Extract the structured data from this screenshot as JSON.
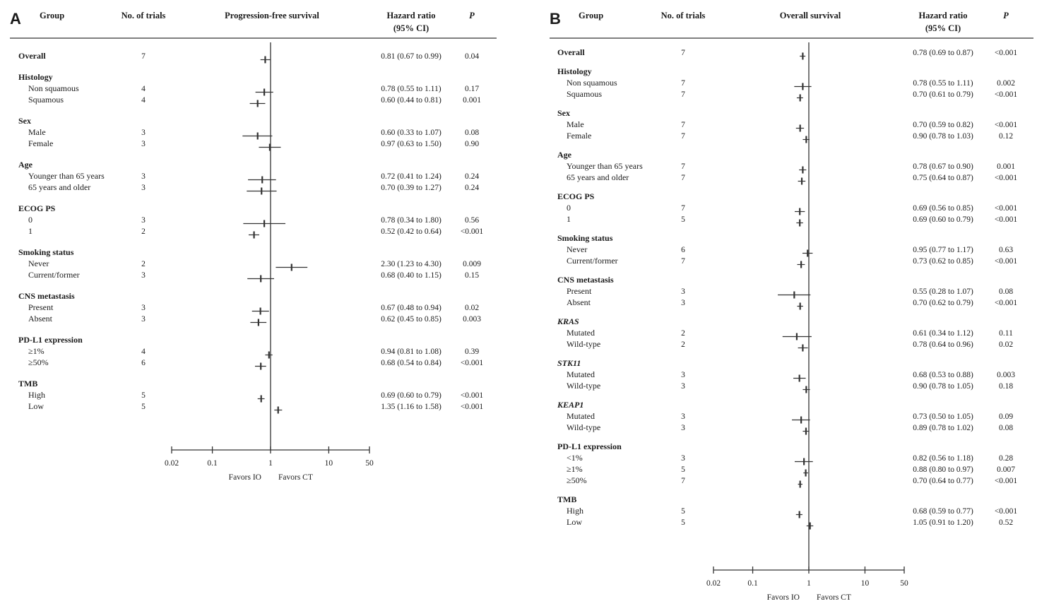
{
  "chart_data": [
    {
      "panel_label": "A",
      "type": "forest",
      "headers": {
        "group": "Group",
        "trials": "No. of trials",
        "plot": "Progression-free survival",
        "hr_line1": "Hazard ratio",
        "hr_line2": "(95% CI)",
        "p": "P"
      },
      "x_scale": "log",
      "xlim": [
        0.02,
        50
      ],
      "x_ticks": [
        "0.02",
        "0.1",
        "1",
        "10",
        "50"
      ],
      "reference_line": 1,
      "favors_left": "Favors IO",
      "favors_right": "Favors CT",
      "rows": [
        {
          "kind": "group",
          "label": "Overall",
          "trials": "7",
          "hr": 0.81,
          "lo": 0.67,
          "hi": 0.99,
          "ci_text": "0.81 (0.67 to 0.99)",
          "p": "0.04"
        },
        {
          "kind": "group",
          "label": "Histology"
        },
        {
          "kind": "sub",
          "label": "Non squamous",
          "trials": "4",
          "hr": 0.78,
          "lo": 0.55,
          "hi": 1.11,
          "ci_text": "0.78 (0.55 to 1.11)",
          "p": "0.17"
        },
        {
          "kind": "sub",
          "label": "Squamous",
          "trials": "4",
          "hr": 0.6,
          "lo": 0.44,
          "hi": 0.81,
          "ci_text": "0.60 (0.44 to 0.81)",
          "p": "0.001"
        },
        {
          "kind": "group",
          "label": "Sex"
        },
        {
          "kind": "sub",
          "label": "Male",
          "trials": "3",
          "hr": 0.6,
          "lo": 0.33,
          "hi": 1.07,
          "ci_text": "0.60 (0.33 to 1.07)",
          "p": "0.08"
        },
        {
          "kind": "sub",
          "label": "Female",
          "trials": "3",
          "hr": 0.97,
          "lo": 0.63,
          "hi": 1.5,
          "ci_text": "0.97 (0.63 to 1.50)",
          "p": "0.90"
        },
        {
          "kind": "group",
          "label": "Age"
        },
        {
          "kind": "sub",
          "label": "Younger than 65 years",
          "trials": "3",
          "hr": 0.72,
          "lo": 0.41,
          "hi": 1.24,
          "ci_text": "0.72 (0.41 to 1.24)",
          "p": "0.24"
        },
        {
          "kind": "sub",
          "label": "65 years and older",
          "trials": "3",
          "hr": 0.7,
          "lo": 0.39,
          "hi": 1.27,
          "ci_text": "0.70 (0.39 to 1.27)",
          "p": "0.24"
        },
        {
          "kind": "group",
          "label": "ECOG PS"
        },
        {
          "kind": "sub",
          "label": "0",
          "trials": "3",
          "hr": 0.78,
          "lo": 0.34,
          "hi": 1.8,
          "ci_text": "0.78 (0.34 to 1.80)",
          "p": "0.56"
        },
        {
          "kind": "sub",
          "label": "1",
          "trials": "2",
          "hr": 0.52,
          "lo": 0.42,
          "hi": 0.64,
          "ci_text": "0.52 (0.42 to 0.64)",
          "p": "<0.001"
        },
        {
          "kind": "group",
          "label": "Smoking status"
        },
        {
          "kind": "sub",
          "label": "Never",
          "trials": "2",
          "hr": 2.3,
          "lo": 1.23,
          "hi": 4.3,
          "ci_text": "2.30 (1.23 to 4.30)",
          "p": "0.009"
        },
        {
          "kind": "sub",
          "label": "Current/former",
          "trials": "3",
          "hr": 0.68,
          "lo": 0.4,
          "hi": 1.15,
          "ci_text": "0.68 (0.40 to 1.15)",
          "p": "0.15"
        },
        {
          "kind": "group",
          "label": "CNS metastasis"
        },
        {
          "kind": "sub",
          "label": "Present",
          "trials": "3",
          "hr": 0.67,
          "lo": 0.48,
          "hi": 0.94,
          "ci_text": "0.67 (0.48 to 0.94)",
          "p": "0.02"
        },
        {
          "kind": "sub",
          "label": "Absent",
          "trials": "3",
          "hr": 0.62,
          "lo": 0.45,
          "hi": 0.85,
          "ci_text": "0.62 (0.45 to 0.85)",
          "p": "0.003"
        },
        {
          "kind": "group",
          "label": "PD-L1 expression"
        },
        {
          "kind": "sub",
          "label": "≥1%",
          "trials": "4",
          "hr": 0.94,
          "lo": 0.81,
          "hi": 1.08,
          "ci_text": "0.94 (0.81 to 1.08)",
          "p": "0.39"
        },
        {
          "kind": "sub",
          "label": "≥50%",
          "trials": "6",
          "hr": 0.68,
          "lo": 0.54,
          "hi": 0.84,
          "ci_text": "0.68 (0.54 to 0.84)",
          "p": "<0.001"
        },
        {
          "kind": "group",
          "label": "TMB"
        },
        {
          "kind": "sub",
          "label": "High",
          "trials": "5",
          "hr": 0.69,
          "lo": 0.6,
          "hi": 0.79,
          "ci_text": "0.69 (0.60 to 0.79)",
          "p": "<0.001"
        },
        {
          "kind": "sub",
          "label": "Low",
          "trials": "5",
          "hr": 1.35,
          "lo": 1.16,
          "hi": 1.58,
          "ci_text": "1.35 (1.16 to 1.58)",
          "p": "<0.001"
        }
      ]
    },
    {
      "panel_label": "B",
      "type": "forest",
      "headers": {
        "group": "Group",
        "trials": "No. of trials",
        "plot": "Overall survival",
        "hr_line1": "Hazard ratio",
        "hr_line2": "(95% CI)",
        "p": "P"
      },
      "x_scale": "log",
      "xlim": [
        0.02,
        50
      ],
      "x_ticks": [
        "0.02",
        "0.1",
        "1",
        "10",
        "50"
      ],
      "reference_line": 1,
      "favors_left": "Favors IO",
      "favors_right": "Favors CT",
      "rows": [
        {
          "kind": "group",
          "label": "Overall",
          "trials": "7",
          "hr": 0.78,
          "lo": 0.69,
          "hi": 0.87,
          "ci_text": "0.78 (0.69 to 0.87)",
          "p": "<0.001"
        },
        {
          "kind": "group",
          "label": "Histology"
        },
        {
          "kind": "sub",
          "label": "Non squamous",
          "trials": "7",
          "hr": 0.78,
          "lo": 0.55,
          "hi": 1.11,
          "ci_text": "0.78 (0.55 to 1.11)",
          "p": "0.002"
        },
        {
          "kind": "sub",
          "label": "Squamous",
          "trials": "7",
          "hr": 0.7,
          "lo": 0.61,
          "hi": 0.79,
          "ci_text": "0.70 (0.61 to 0.79)",
          "p": "<0.001"
        },
        {
          "kind": "group",
          "label": "Sex"
        },
        {
          "kind": "sub",
          "label": "Male",
          "trials": "7",
          "hr": 0.7,
          "lo": 0.59,
          "hi": 0.82,
          "ci_text": "0.70 (0.59 to 0.82)",
          "p": "<0.001"
        },
        {
          "kind": "sub",
          "label": "Female",
          "trials": "7",
          "hr": 0.9,
          "lo": 0.78,
          "hi": 1.03,
          "ci_text": "0.90 (0.78 to 1.03)",
          "p": "0.12"
        },
        {
          "kind": "group",
          "label": "Age"
        },
        {
          "kind": "sub",
          "label": "Younger than 65 years",
          "trials": "7",
          "hr": 0.78,
          "lo": 0.67,
          "hi": 0.9,
          "ci_text": "0.78 (0.67 to 0.90)",
          "p": "0.001"
        },
        {
          "kind": "sub",
          "label": "65 years and older",
          "trials": "7",
          "hr": 0.75,
          "lo": 0.64,
          "hi": 0.87,
          "ci_text": "0.75 (0.64 to 0.87)",
          "p": "<0.001"
        },
        {
          "kind": "group",
          "label": "ECOG PS"
        },
        {
          "kind": "sub",
          "label": "0",
          "trials": "7",
          "hr": 0.69,
          "lo": 0.56,
          "hi": 0.85,
          "ci_text": "0.69 (0.56 to 0.85)",
          "p": "<0.001"
        },
        {
          "kind": "sub",
          "label": "1",
          "trials": "5",
          "hr": 0.69,
          "lo": 0.6,
          "hi": 0.79,
          "ci_text": "0.69 (0.60 to 0.79)",
          "p": "<0.001"
        },
        {
          "kind": "group",
          "label": "Smoking status"
        },
        {
          "kind": "sub",
          "label": "Never",
          "trials": "6",
          "hr": 0.95,
          "lo": 0.77,
          "hi": 1.17,
          "ci_text": "0.95 (0.77 to 1.17)",
          "p": "0.63"
        },
        {
          "kind": "sub",
          "label": "Current/former",
          "trials": "7",
          "hr": 0.73,
          "lo": 0.62,
          "hi": 0.85,
          "ci_text": "0.73 (0.62 to 0.85)",
          "p": "<0.001"
        },
        {
          "kind": "group",
          "label": "CNS metastasis"
        },
        {
          "kind": "sub",
          "label": "Present",
          "trials": "3",
          "hr": 0.55,
          "lo": 0.28,
          "hi": 1.07,
          "ci_text": "0.55 (0.28 to 1.07)",
          "p": "0.08"
        },
        {
          "kind": "sub",
          "label": "Absent",
          "trials": "3",
          "hr": 0.7,
          "lo": 0.62,
          "hi": 0.79,
          "ci_text": "0.70 (0.62 to 0.79)",
          "p": "<0.001"
        },
        {
          "kind": "group",
          "label": "KRAS",
          "italic": true
        },
        {
          "kind": "sub",
          "label": "Mutated",
          "trials": "2",
          "hr": 0.61,
          "lo": 0.34,
          "hi": 1.12,
          "ci_text": "0.61 (0.34 to 1.12)",
          "p": "0.11"
        },
        {
          "kind": "sub",
          "label": "Wild-type",
          "trials": "2",
          "hr": 0.78,
          "lo": 0.64,
          "hi": 0.96,
          "ci_text": "0.78 (0.64 to 0.96)",
          "p": "0.02"
        },
        {
          "kind": "group",
          "label": "STK11",
          "italic": true
        },
        {
          "kind": "sub",
          "label": "Mutated",
          "trials": "3",
          "hr": 0.68,
          "lo": 0.53,
          "hi": 0.88,
          "ci_text": "0.68 (0.53 to 0.88)",
          "p": "0.003"
        },
        {
          "kind": "sub",
          "label": "Wild-type",
          "trials": "3",
          "hr": 0.9,
          "lo": 0.78,
          "hi": 1.05,
          "ci_text": "0.90 (0.78 to 1.05)",
          "p": "0.18"
        },
        {
          "kind": "group",
          "label": "KEAP1",
          "italic": true
        },
        {
          "kind": "sub",
          "label": "Mutated",
          "trials": "3",
          "hr": 0.73,
          "lo": 0.5,
          "hi": 1.05,
          "ci_text": "0.73 (0.50 to 1.05)",
          "p": "0.09"
        },
        {
          "kind": "sub",
          "label": "Wild-type",
          "trials": "3",
          "hr": 0.89,
          "lo": 0.78,
          "hi": 1.02,
          "ci_text": "0.89 (0.78 to 1.02)",
          "p": "0.08"
        },
        {
          "kind": "group",
          "label": "PD-L1 expression"
        },
        {
          "kind": "sub",
          "label": "<1%",
          "trials": "3",
          "hr": 0.82,
          "lo": 0.56,
          "hi": 1.18,
          "ci_text": "0.82 (0.56 to 1.18)",
          "p": "0.28"
        },
        {
          "kind": "sub",
          "label": "≥1%",
          "trials": "5",
          "hr": 0.88,
          "lo": 0.8,
          "hi": 0.97,
          "ci_text": "0.88 (0.80 to 0.97)",
          "p": "0.007"
        },
        {
          "kind": "sub",
          "label": "≥50%",
          "trials": "7",
          "hr": 0.7,
          "lo": 0.64,
          "hi": 0.77,
          "ci_text": "0.70 (0.64 to 0.77)",
          "p": "<0.001"
        },
        {
          "kind": "group",
          "label": "TMB"
        },
        {
          "kind": "sub",
          "label": "High",
          "trials": "5",
          "hr": 0.68,
          "lo": 0.59,
          "hi": 0.77,
          "ci_text": "0.68 (0.59 to 0.77)",
          "p": "<0.001"
        },
        {
          "kind": "sub",
          "label": "Low",
          "trials": "5",
          "hr": 1.05,
          "lo": 0.91,
          "hi": 1.2,
          "ci_text": "1.05 (0.91 to 1.20)",
          "p": "0.52"
        }
      ]
    }
  ]
}
